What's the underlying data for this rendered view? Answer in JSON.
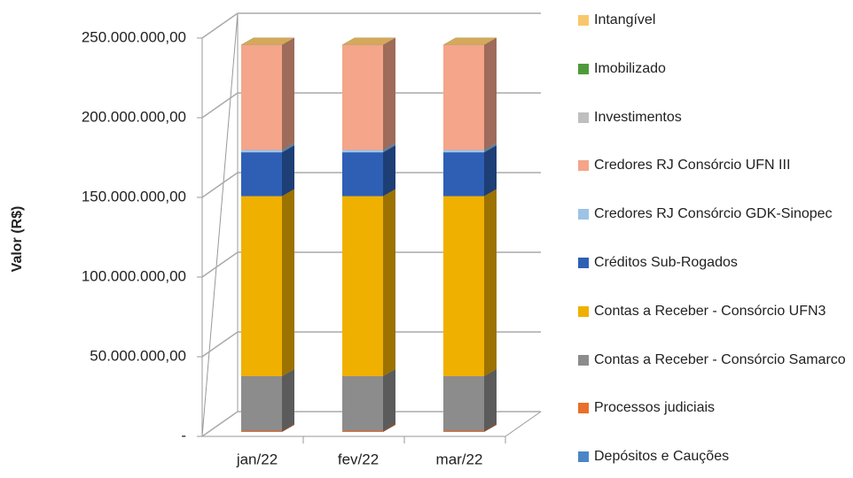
{
  "chart_data": {
    "type": "bar3d_stacked",
    "ylabel": "Valor (R$)",
    "categories": [
      "jan/22",
      "fev/22",
      "mar/22"
    ],
    "ylim": [
      0,
      250000000
    ],
    "yticks": [
      {
        "value": 0,
        "label": "-"
      },
      {
        "value": 50000000,
        "label": "50.000.000,00"
      },
      {
        "value": 100000000,
        "label": "100.000.000,00"
      },
      {
        "value": 150000000,
        "label": "150.000.000,00"
      },
      {
        "value": 200000000,
        "label": "200.000.000,00"
      },
      {
        "value": 250000000,
        "label": "250.000.000,00"
      }
    ],
    "grid": true,
    "legend": "right",
    "series": [
      {
        "name": "Depósitos e Cauções",
        "color": "#4a86c5",
        "values": [
          200000,
          200000,
          200000
        ]
      },
      {
        "name": "Processos judiciais",
        "color": "#e8702a",
        "values": [
          800000,
          800000,
          800000
        ]
      },
      {
        "name": "Contas a Receber - Consórcio Samarco",
        "color": "#8c8c8c",
        "values": [
          34000000,
          34000000,
          34000000
        ]
      },
      {
        "name": "Contas a Receber - Consórcio UFN3",
        "color": "#f0b000",
        "values": [
          113000000,
          113000000,
          113000000
        ]
      },
      {
        "name": "Créditos Sub-Rogados",
        "color": "#2e5fb5",
        "values": [
          27500000,
          27500000,
          27500000
        ]
      },
      {
        "name": "Credores RJ Consórcio GDK-Sinopec",
        "color": "#9dc3e6",
        "values": [
          1500000,
          1500000,
          1500000
        ]
      },
      {
        "name": "Credores RJ Consórcio UFN III",
        "color": "#f4a58a",
        "values": [
          66000000,
          66000000,
          66000000
        ]
      },
      {
        "name": "Investimentos",
        "color": "#bfbfbf",
        "values": [
          0,
          0,
          0
        ]
      },
      {
        "name": "Imobilizado",
        "color": "#4e9a3a",
        "values": [
          0,
          0,
          0
        ]
      },
      {
        "name": "Intangível",
        "color": "#f9c76b",
        "values": [
          0,
          0,
          0
        ]
      }
    ]
  }
}
